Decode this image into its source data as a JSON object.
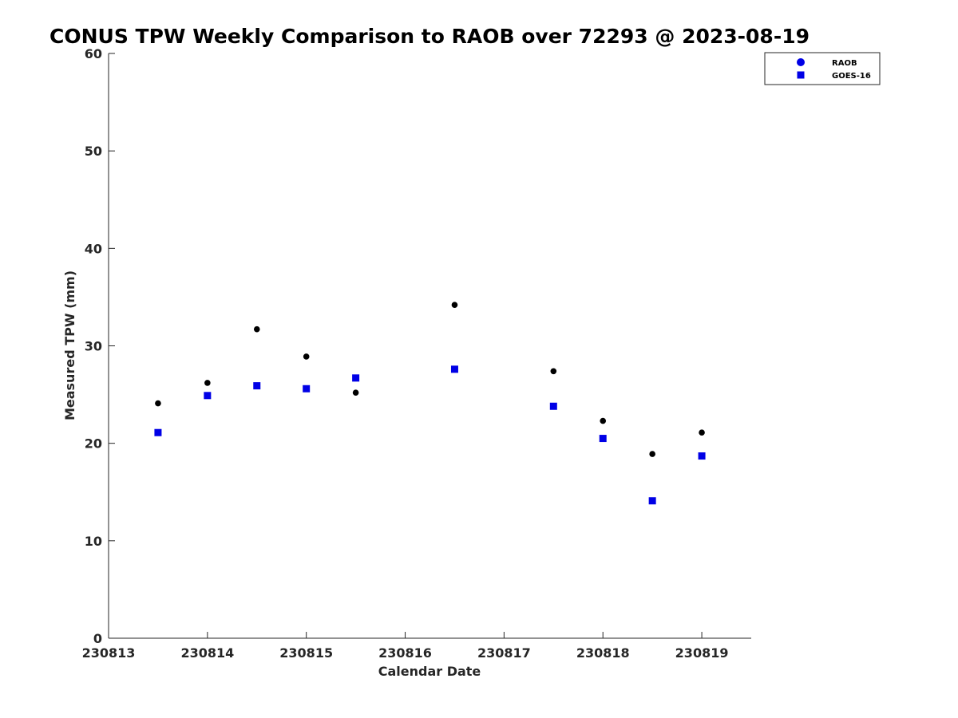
{
  "chart_data": {
    "type": "scatter",
    "title": "CONUS TPW Weekly Comparison to RAOB over 72293 @ 2023-08-19",
    "xlabel": "Calendar Date",
    "ylabel": "Measured TPW (mm)",
    "xlim": [
      230813,
      230819.5
    ],
    "ylim": [
      0,
      60
    ],
    "xticks": [
      230813,
      230814,
      230815,
      230816,
      230817,
      230818,
      230819
    ],
    "xtick_labels": [
      "230813",
      "230814",
      "230815",
      "230816",
      "230817",
      "230818",
      "230819"
    ],
    "yticks": [
      0,
      10,
      20,
      30,
      40,
      50,
      60
    ],
    "ytick_labels": [
      "0",
      "10",
      "20",
      "30",
      "40",
      "50",
      "60"
    ],
    "grid": false,
    "legend_position": "top-right",
    "series": [
      {
        "name": "RAOB",
        "marker": "circle",
        "color": "#000000",
        "legend_color": "#0000e6",
        "x": [
          230813.5,
          230814,
          230814.5,
          230815,
          230815.5,
          230816.5,
          230817.5,
          230818,
          230818.5,
          230819
        ],
        "y": [
          24.1,
          26.2,
          31.7,
          28.9,
          25.2,
          34.2,
          27.4,
          22.3,
          18.9,
          21.1
        ]
      },
      {
        "name": "GOES-16",
        "marker": "square",
        "color": "#0000e6",
        "legend_color": "#0000e6",
        "x": [
          230813.5,
          230814,
          230814.5,
          230815,
          230815.5,
          230816.5,
          230817.5,
          230818,
          230818.5,
          230819
        ],
        "y": [
          21.1,
          24.9,
          25.9,
          25.6,
          26.7,
          27.6,
          23.8,
          20.5,
          14.1,
          18.7
        ]
      }
    ]
  }
}
